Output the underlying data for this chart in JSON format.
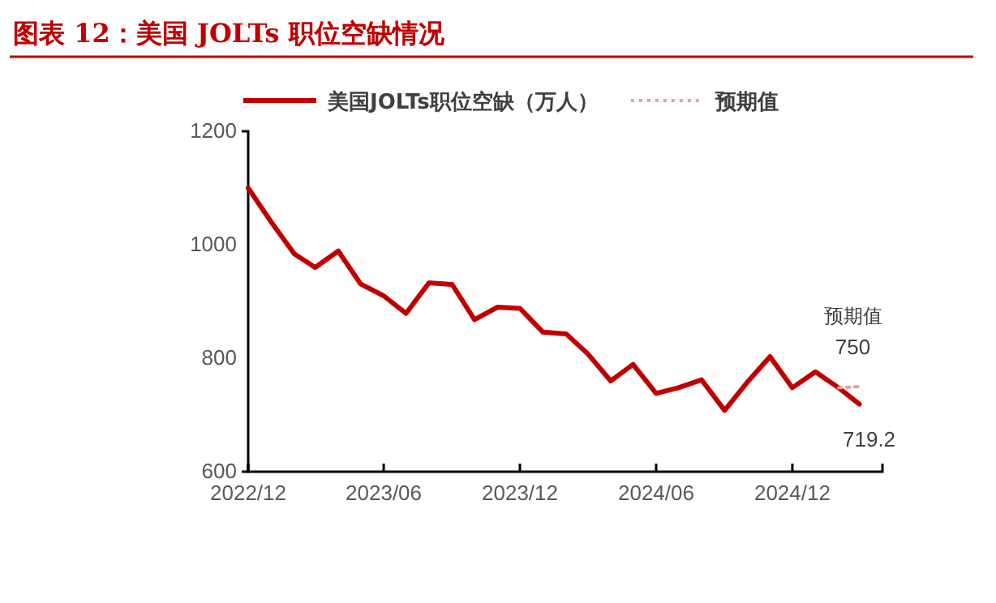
{
  "chart_data": {
    "type": "line",
    "title": "图表 12：美国 JOLTs 职位空缺情况",
    "x": [
      "2022-12",
      "2023-01",
      "2023-02",
      "2023-03",
      "2023-04",
      "2023-05",
      "2023-06",
      "2023-07",
      "2023-08",
      "2023-09",
      "2023-10",
      "2023-11",
      "2023-12",
      "2024-01",
      "2024-02",
      "2024-03",
      "2024-04",
      "2024-05",
      "2024-06",
      "2024-07",
      "2024-08",
      "2024-09",
      "2024-10",
      "2024-11",
      "2024-12",
      "2025-01",
      "2025-02",
      "2025-03"
    ],
    "series": [
      {
        "name": "美国JOLTs职位空缺（万人）",
        "color": "#c00000",
        "values": [
          1100,
          1040,
          984,
          960,
          989,
          931,
          910,
          879,
          933,
          930,
          868,
          890,
          888,
          846,
          843,
          808,
          760,
          789,
          738,
          748,
          762,
          708,
          757,
          803,
          748,
          776,
          748,
          719.2
        ],
        "value_labels": [
          null,
          null,
          null,
          null,
          null,
          null,
          null,
          null,
          null,
          null,
          null,
          null,
          null,
          null,
          null,
          null,
          null,
          null,
          null,
          null,
          null,
          null,
          null,
          null,
          null,
          null,
          null,
          "719.2"
        ]
      },
      {
        "name": "预期值",
        "color": "#e8a0a0",
        "line_style": "dotted",
        "x": [
          "2025-02",
          "2025-03"
        ],
        "values": [
          748,
          750
        ],
        "value_labels": [
          null,
          "750"
        ]
      }
    ],
    "annotations": [
      "预期值"
    ],
    "xlim": [
      "2022-12",
      "2025-04"
    ],
    "xticks": [
      {
        "value": "2022-12",
        "label": "2022/12"
      },
      {
        "value": "2023-06",
        "label": "2023/06"
      },
      {
        "value": "2023-12",
        "label": "2023/12"
      },
      {
        "value": "2024-06",
        "label": "2024/06"
      },
      {
        "value": "2024-12",
        "label": "2024/12"
      }
    ],
    "ylim": [
      600,
      1200
    ],
    "yticks": [
      600,
      800,
      1000,
      1200
    ],
    "legend": "top",
    "grid": false,
    "marker": "none",
    "line_style": "solid"
  }
}
